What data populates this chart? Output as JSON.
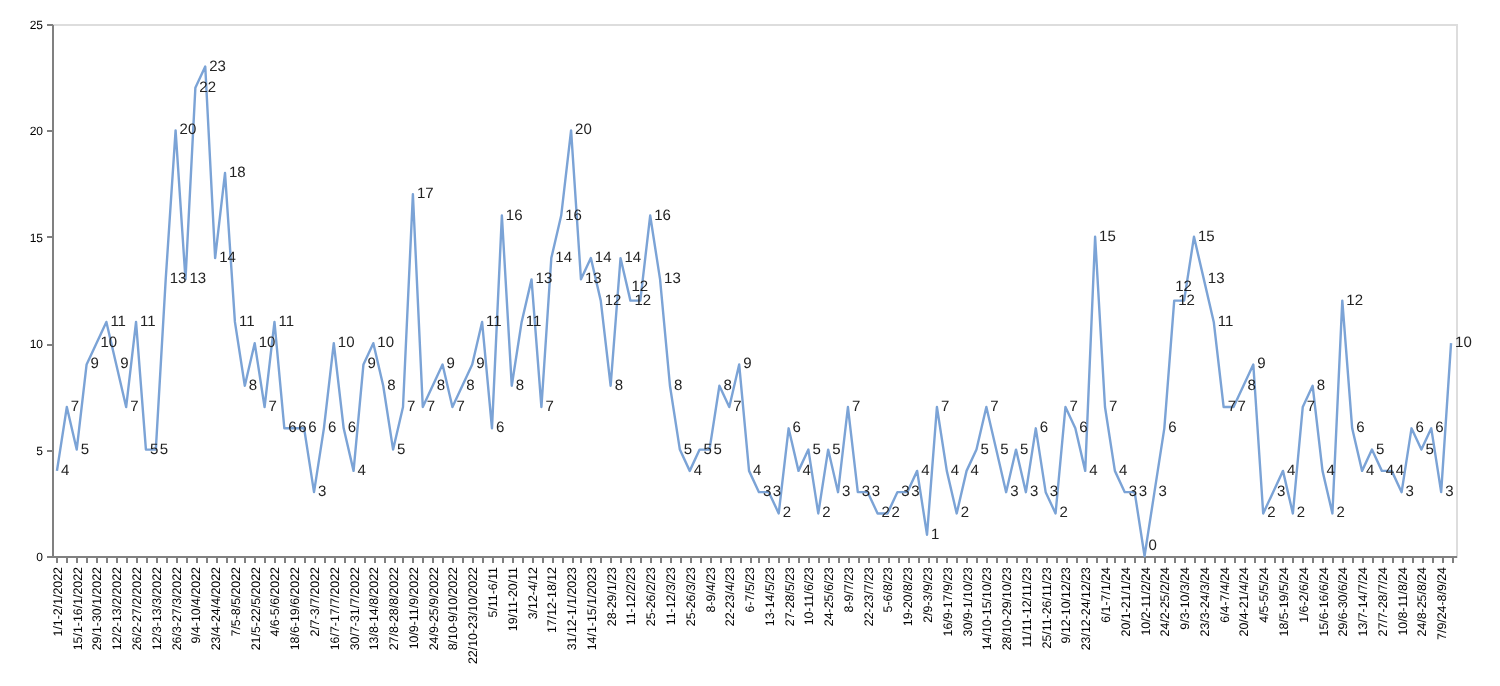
{
  "chart_data": {
    "type": "line",
    "categories": [
      "1/1-2/1/2022",
      null,
      "15/1-16/1/2022",
      null,
      "29/1-30/1/2022",
      null,
      "12/2-13/2/2022",
      null,
      "26/2-27/2/2022",
      null,
      "12/3-13/3/2022",
      null,
      "26/3-27/3/2022",
      null,
      "9/4-10/4/2022",
      null,
      "23/4-24/4/2022",
      null,
      "7/5-8/5/2022",
      null,
      "21/5-22/5/2022",
      null,
      "4/6-5/6/2022",
      null,
      "18/6-19/6/2022",
      null,
      "2/7-3/7/2022",
      null,
      "16/7-17/7/2022",
      null,
      "30/7-31/7/2022",
      null,
      "13/8-14/8/2022",
      null,
      "27/8-28/8/2022",
      null,
      "10/9-11/9/2022",
      null,
      "24/9-25/9/2022",
      null,
      "8/10-9/10/2022",
      null,
      "22/10-23/10/2022",
      null,
      "5/11-6/11",
      null,
      "19/11-20/11",
      null,
      "3/12-4/12",
      null,
      "17/12-18/12",
      null,
      "31/12-1/1/2023",
      null,
      "14/1-15/1/2023",
      null,
      "28-29/1/23",
      null,
      "11-12/2/23",
      null,
      "25-26/2/23",
      null,
      "11-12/3/23",
      null,
      "25-26/3/23",
      null,
      "8-9/4/23",
      null,
      "22-23/4/23",
      null,
      "6-7/5/23",
      null,
      "13-14/5/23",
      null,
      "27-28/5/23",
      null,
      "10-11/6/23",
      null,
      "24-25/6/23",
      null,
      "8-9/7/23",
      null,
      "22-23/7/23",
      null,
      "5-6/8/23",
      null,
      "19-20/8/23",
      null,
      "2/9-3/9/23",
      null,
      "16/9-17/9/23",
      null,
      "30/9-1/10/23",
      null,
      "14/10-15/10/23",
      null,
      "28/10-29/10/23",
      null,
      "11/11-12/11/23",
      null,
      "25/11-26/11/23",
      null,
      "9/12-10/12/23",
      null,
      "23/12-24/12/23",
      null,
      "6/1-7/1/24",
      null,
      "20/1-21/1/24",
      null,
      "10/2-11/2/24",
      null,
      "24/2-25/2/24",
      null,
      "9/3-10/3/24",
      null,
      "23/3-24/3/24",
      null,
      "6/4-7/4/24",
      null,
      "20/4-21/4/24",
      null,
      "4/5-5/5/24",
      null,
      "18/5-19/5/24",
      null,
      "1/6-2/6/24",
      null,
      "15/6-16/6/24",
      null,
      "29/6-30/6/24",
      null,
      "13/7-14/7/24",
      null,
      "27/7-28/7/24",
      null,
      "10/8-11/8/24",
      null,
      "24/8-25/8/24",
      null,
      "7/9/24-8/9/24",
      null
    ],
    "series": [
      {
        "color": "#7ba3d6",
        "values": [
          4,
          7,
          5,
          9,
          10,
          11,
          9,
          7,
          11,
          5,
          5,
          13,
          20,
          13,
          22,
          23,
          14,
          18,
          11,
          8,
          10,
          7,
          11,
          6,
          6,
          6,
          3,
          6,
          10,
          6,
          4,
          9,
          10,
          8,
          5,
          7,
          17,
          7,
          8,
          9,
          7,
          8,
          9,
          11,
          6,
          16,
          8,
          11,
          13,
          7,
          14,
          16,
          20,
          13,
          14,
          12,
          8,
          14,
          12,
          12,
          16,
          13,
          8,
          5,
          4,
          5,
          5,
          8,
          7,
          9,
          4,
          3,
          3,
          2,
          6,
          4,
          5,
          2,
          5,
          3,
          7,
          3,
          3,
          2,
          2,
          3,
          3,
          4,
          1,
          7,
          4,
          2,
          4,
          5,
          7,
          5,
          3,
          5,
          3,
          6,
          3,
          2,
          7,
          6,
          4,
          15,
          7,
          4,
          3,
          3,
          0,
          3,
          6,
          12,
          12,
          15,
          13,
          11,
          7,
          7,
          8,
          9,
          2,
          3,
          4,
          2,
          7,
          8,
          4,
          2,
          12,
          6,
          4,
          5,
          4,
          4,
          3,
          6,
          5,
          6,
          3,
          10
        ]
      }
    ],
    "ylim": [
      0,
      25
    ],
    "yticks": [
      0,
      5,
      10,
      15,
      20,
      25
    ],
    "data_labels": true,
    "grid": false,
    "legend": false,
    "marker": "none",
    "line_style": "solid"
  }
}
